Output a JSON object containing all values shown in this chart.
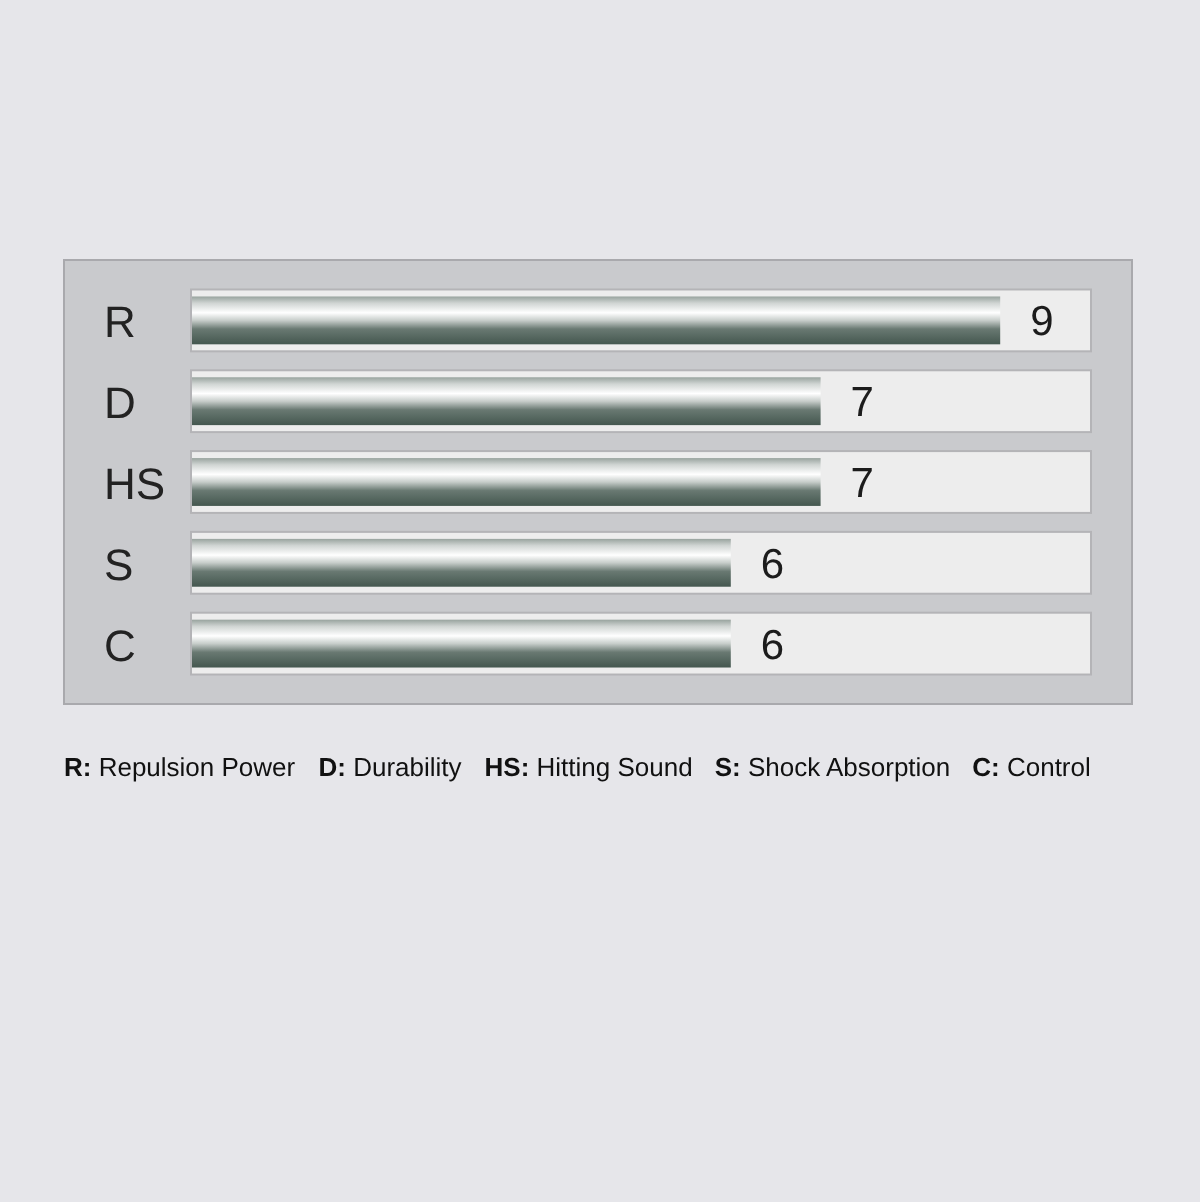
{
  "chart_data": {
    "type": "bar",
    "orientation": "horizontal",
    "categories": [
      "R",
      "D",
      "HS",
      "S",
      "C"
    ],
    "values": [
      9,
      7,
      7,
      6,
      6
    ],
    "color": "#44574f",
    "xlim": [
      0,
      10
    ],
    "data_labels": true,
    "tick_labels": "y",
    "annotations": [
      "R: Repulsion Power",
      "D: Durability",
      "HS: Hitting Sound",
      "S: Shock Absorption",
      "C: Control"
    ]
  }
}
